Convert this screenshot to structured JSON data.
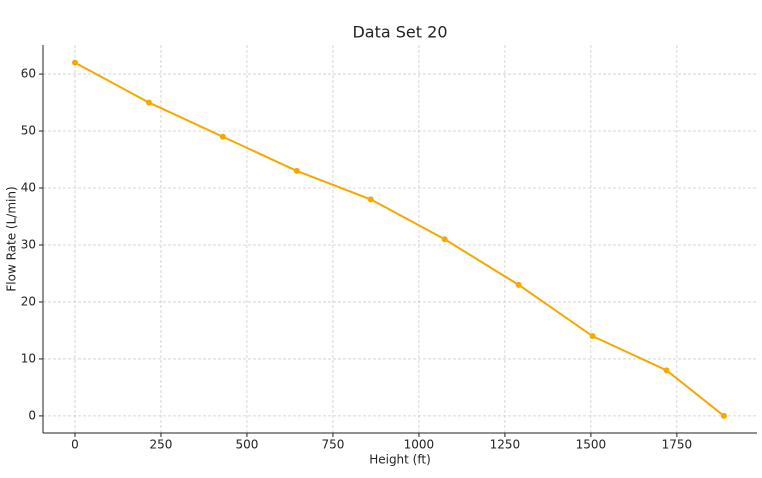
{
  "chart_data": {
    "type": "line",
    "title": "Data Set 20",
    "x_label": "Height (ft)",
    "y_label": "Flow Rate (L/min)",
    "x": [
      0,
      215,
      430,
      645,
      860,
      1075,
      1290,
      1505,
      1720,
      1887
    ],
    "series": [
      {
        "name": "Flow Rate",
        "color": "#f7a800",
        "values": [
          62,
          55,
          49,
          43,
          38,
          31,
          23,
          14,
          8,
          0
        ]
      }
    ],
    "xlim": [
      -93,
      1983
    ],
    "ylim": [
      -3,
      65.1
    ],
    "xticks": [
      0,
      250,
      500,
      750,
      1000,
      1250,
      1500,
      1750
    ],
    "yticks": [
      0,
      10,
      20,
      30,
      40,
      50,
      60
    ],
    "grid": true
  }
}
